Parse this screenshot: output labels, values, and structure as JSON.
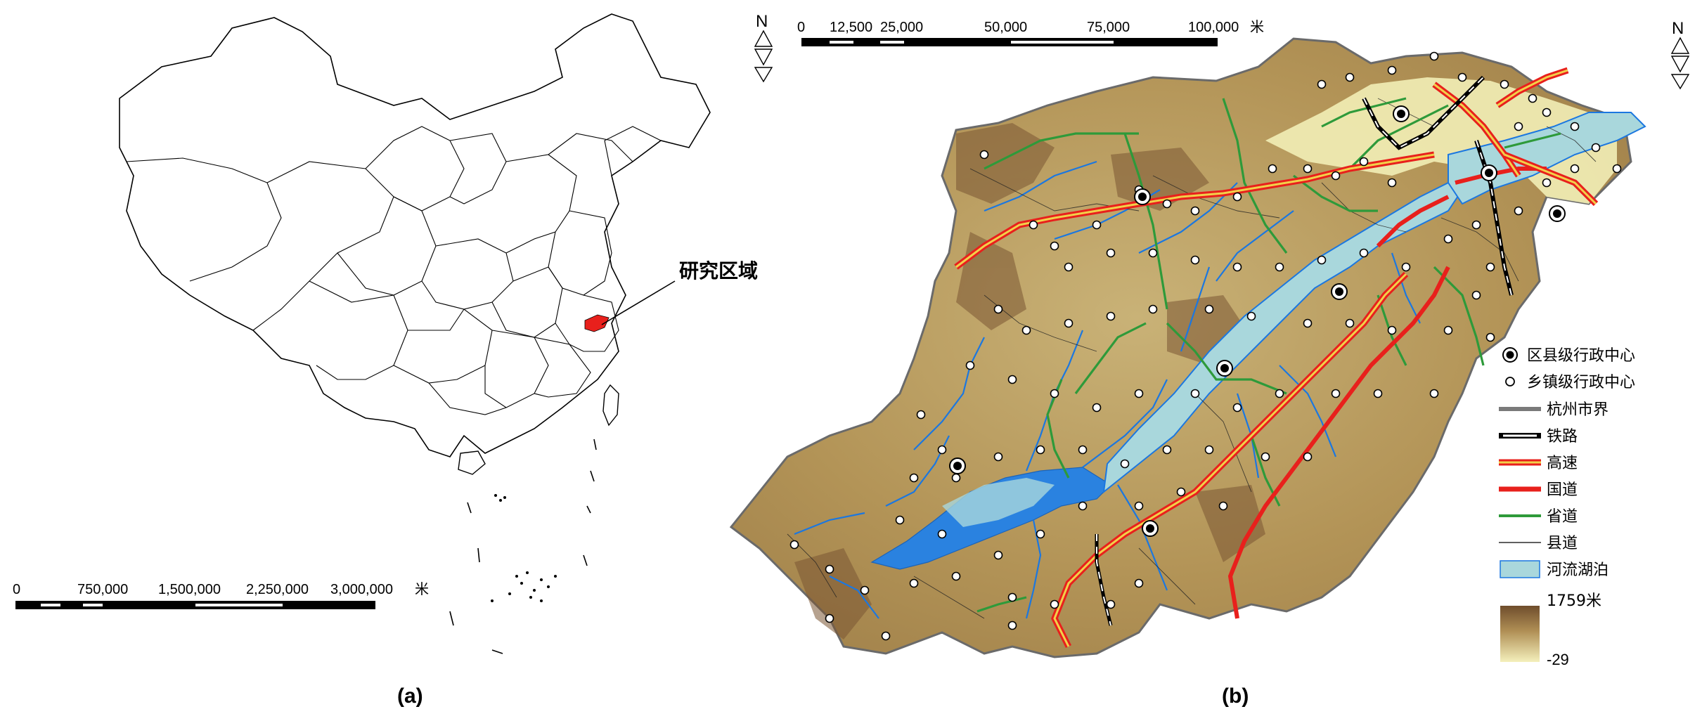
{
  "panel_a": {
    "label": "(a)",
    "study_area_label": "研究区域",
    "scalebar_ticks": [
      "0",
      "750,000",
      "1,500,000",
      "2,250,000",
      "3,000,000"
    ],
    "scalebar_unit": "米",
    "north_letter": "N"
  },
  "panel_b": {
    "label": "(b)",
    "scalebar_ticks": [
      "0",
      "12,500",
      "25,000",
      "50,000",
      "75,000",
      "100,000"
    ],
    "scalebar_unit": "米",
    "north_letter": "N",
    "legend": [
      {
        "key": "district_center",
        "label": "区县级行政中心"
      },
      {
        "key": "town_center",
        "label": "乡镇级行政中心"
      },
      {
        "key": "city_boundary",
        "label": "杭州市界"
      },
      {
        "key": "railway",
        "label": "铁路"
      },
      {
        "key": "expressway",
        "label": "高速"
      },
      {
        "key": "national_road",
        "label": "国道"
      },
      {
        "key": "provincial_road",
        "label": "省道"
      },
      {
        "key": "county_road",
        "label": "县道"
      },
      {
        "key": "water",
        "label": "河流湖泊"
      }
    ],
    "elevation_max": "1759米",
    "elevation_min": "-29"
  },
  "colors": {
    "study_area": "#e8201c",
    "expressway_outer": "#e8201c",
    "expressway_inner": "#f2d04a",
    "national_road": "#e8201c",
    "provincial_road": "#2e9a3a",
    "water_fill": "#a9d7dc",
    "river": "#1b77e0",
    "elev_high": "#7a5633",
    "elev_mid": "#b89a5c",
    "elev_low": "#f2eeb6"
  }
}
